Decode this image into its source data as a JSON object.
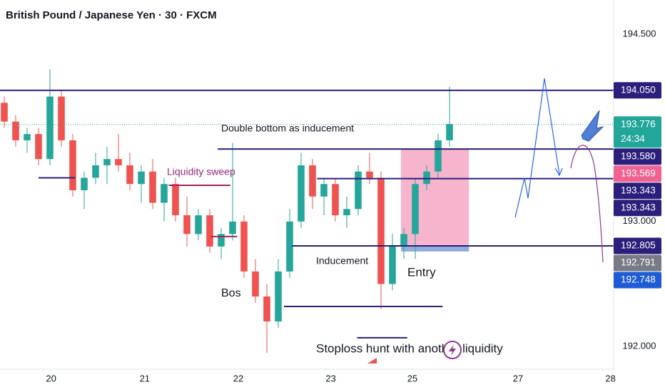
{
  "chart_data": {
    "type": "candlestick",
    "title": "British Pound / Japanese Yen · 30 · FXCM",
    "up_color": "#26a69a",
    "down_color": "#ef5350",
    "candles": [
      [
        193.95,
        194.0,
        193.75,
        193.8
      ],
      [
        193.8,
        193.85,
        193.6,
        193.65
      ],
      [
        193.65,
        193.75,
        193.55,
        193.7
      ],
      [
        193.7,
        193.75,
        193.45,
        193.5
      ],
      [
        193.5,
        194.22,
        193.45,
        194.0
      ],
      [
        194.0,
        194.05,
        193.6,
        193.65
      ],
      [
        193.65,
        193.7,
        193.2,
        193.25
      ],
      [
        193.25,
        193.4,
        193.1,
        193.35
      ],
      [
        193.35,
        193.55,
        193.3,
        193.45
      ],
      [
        193.45,
        193.6,
        193.3,
        193.5
      ],
      [
        193.5,
        193.7,
        193.4,
        193.45
      ],
      [
        193.45,
        193.55,
        193.25,
        193.3
      ],
      [
        193.3,
        193.45,
        193.15,
        193.4
      ],
      [
        193.4,
        193.5,
        193.1,
        193.15
      ],
      [
        193.15,
        193.35,
        193.0,
        193.3
      ],
      [
        193.3,
        193.35,
        193.0,
        193.05
      ],
      [
        193.05,
        193.2,
        192.8,
        192.9
      ],
      [
        192.9,
        193.1,
        192.85,
        193.05
      ],
      [
        193.05,
        193.1,
        192.75,
        192.8
      ],
      [
        192.8,
        192.95,
        192.7,
        192.9
      ],
      [
        192.9,
        193.63,
        192.85,
        193.0
      ],
      [
        193.0,
        193.05,
        192.55,
        192.6
      ],
      [
        192.6,
        192.7,
        192.35,
        192.4
      ],
      [
        192.4,
        192.5,
        191.95,
        192.2
      ],
      [
        192.2,
        192.7,
        192.15,
        192.6
      ],
      [
        192.6,
        193.1,
        192.55,
        193.0
      ],
      [
        193.0,
        193.55,
        192.95,
        193.45
      ],
      [
        193.45,
        193.5,
        193.1,
        193.2
      ],
      [
        193.2,
        193.35,
        193.05,
        193.3
      ],
      [
        193.3,
        193.35,
        193.0,
        193.05
      ],
      [
        193.05,
        193.2,
        192.95,
        193.1
      ],
      [
        193.1,
        193.45,
        193.05,
        193.4
      ],
      [
        193.4,
        193.55,
        193.3,
        193.35
      ],
      [
        193.35,
        193.4,
        192.3,
        192.5
      ],
      [
        192.5,
        192.9,
        192.45,
        192.8
      ],
      [
        192.8,
        192.95,
        192.7,
        192.9
      ],
      [
        192.9,
        193.35,
        192.7,
        193.3
      ],
      [
        193.3,
        193.45,
        193.25,
        193.4
      ],
      [
        193.4,
        193.7,
        193.35,
        193.65
      ],
      [
        193.65,
        194.08,
        193.6,
        193.78
      ]
    ],
    "xlim": [
      -0.375,
      53.375
    ],
    "xticks": [
      {
        "value": 4.1,
        "label": "20"
      },
      {
        "value": 12.3,
        "label": "21"
      },
      {
        "value": 20.5,
        "label": "22"
      },
      {
        "value": 28.6,
        "label": "23"
      },
      {
        "value": 35.75,
        "label": "25"
      },
      {
        "value": 45,
        "label": "27"
      },
      {
        "value": 53.1,
        "label": "28"
      }
    ],
    "ylim": [
      194.773,
      191.818
    ],
    "yticks": [
      {
        "value": 194.5,
        "label": "194.500"
      },
      {
        "value": 193.0,
        "label": "193.000"
      },
      {
        "value": 192.0,
        "label": "192.000"
      }
    ],
    "levels": [
      {
        "price": 194.05,
        "x": [
          -0.375,
          53.375
        ],
        "color": "#2a1f7a"
      },
      {
        "price": 193.58,
        "x": [
          18.7,
          53.375
        ],
        "color": "#2a1f7a"
      },
      {
        "price": 193.343,
        "x": [
          27.4,
          53.375
        ],
        "color": "#2a1f7a"
      },
      {
        "price": 192.805,
        "x": [
          25.2,
          53.375
        ],
        "color": "#2a1f7a"
      },
      {
        "price": 193.35,
        "x": [
          3,
          6.2
        ],
        "color": "#2a1f7a"
      },
      {
        "price": 193.29,
        "x": [
          14.4,
          19.8
        ],
        "color": "#a0245e"
      },
      {
        "price": 192.88,
        "x": [
          18.1,
          20.4
        ],
        "color": "#a0245e"
      },
      {
        "price": 192.32,
        "x": [
          24.5,
          38.4
        ],
        "color": "#2a1f7a"
      },
      {
        "price": 192.07,
        "x": [
          30.9,
          35.3
        ],
        "color": "#2a1f7a"
      }
    ],
    "zones": [
      {
        "prices": [
          193.58,
          192.8
        ],
        "x": [
          34.75,
          40.7
        ],
        "color": "#f4a7c4"
      },
      {
        "prices": [
          192.805,
          192.76
        ],
        "x": [
          34.75,
          40.7
        ],
        "color": "#7f9fd6"
      }
    ],
    "current_price": 193.776,
    "price_labels": [
      {
        "value": 194.05,
        "label": "194.050",
        "color": "#2a1f7a"
      },
      {
        "value": 193.776,
        "label": "193.776",
        "extra": "24:34",
        "color": "#22a699"
      },
      {
        "value": 193.58,
        "label": "193.580",
        "color": "#2a1f7a"
      },
      {
        "value": 193.569,
        "label": "193.569",
        "color": "#f06292"
      },
      {
        "value": 193.343,
        "label": "193.343",
        "color": "#2a1f7a"
      },
      {
        "value": 193.343,
        "label": "193.343",
        "color": "#2a1f7a"
      },
      {
        "value": 192.805,
        "label": "192.805",
        "color": "#2a1f7a"
      },
      {
        "value": 192.791,
        "label": "192.791",
        "color": "#787b86"
      },
      {
        "value": 192.748,
        "label": "192.748",
        "color": "#1e5bd6"
      }
    ],
    "annotations": [
      "Double bottom as inducement",
      "Liquidity sweep",
      "Bos",
      "Inducement",
      "Entry",
      "Stoploss hunt with another liquidity"
    ]
  }
}
